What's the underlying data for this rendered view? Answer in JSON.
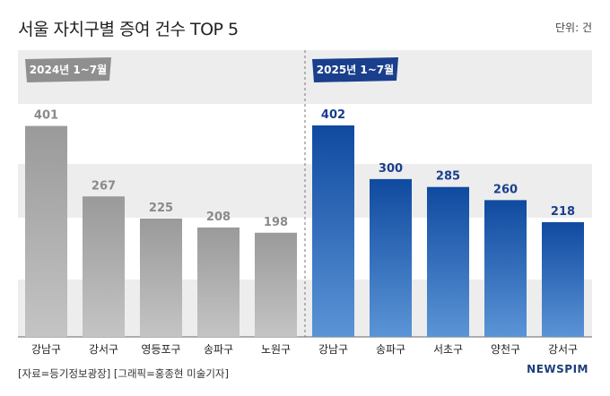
{
  "title": "서울 자치구별 증여 건수 TOP 5",
  "unit": "단위: 건",
  "source": "[자료=등기정보광장] [그래픽=홍종현 미술기자]",
  "logo": "NEWSPIM",
  "colors": {
    "gray_bar": "#a7a7a7",
    "blue_bar": "#1553a8",
    "blue_bar_light": "#4a86cf",
    "gray_tag": "#8f8f8f",
    "blue_tag": "#1a3f8c",
    "band": "#ededed"
  },
  "chart_data": [
    {
      "type": "bar",
      "period": "2024년 1~7월",
      "categories": [
        "강남구",
        "강서구",
        "영등포구",
        "송파구",
        "노원구"
      ],
      "values": [
        401,
        267,
        225,
        208,
        198
      ],
      "ylim": [
        0,
        450
      ]
    },
    {
      "type": "bar",
      "period": "2025년 1~7월",
      "categories": [
        "강남구",
        "송파구",
        "서초구",
        "양천구",
        "강서구"
      ],
      "values": [
        402,
        300,
        285,
        260,
        218
      ],
      "ylim": [
        0,
        450
      ]
    }
  ]
}
